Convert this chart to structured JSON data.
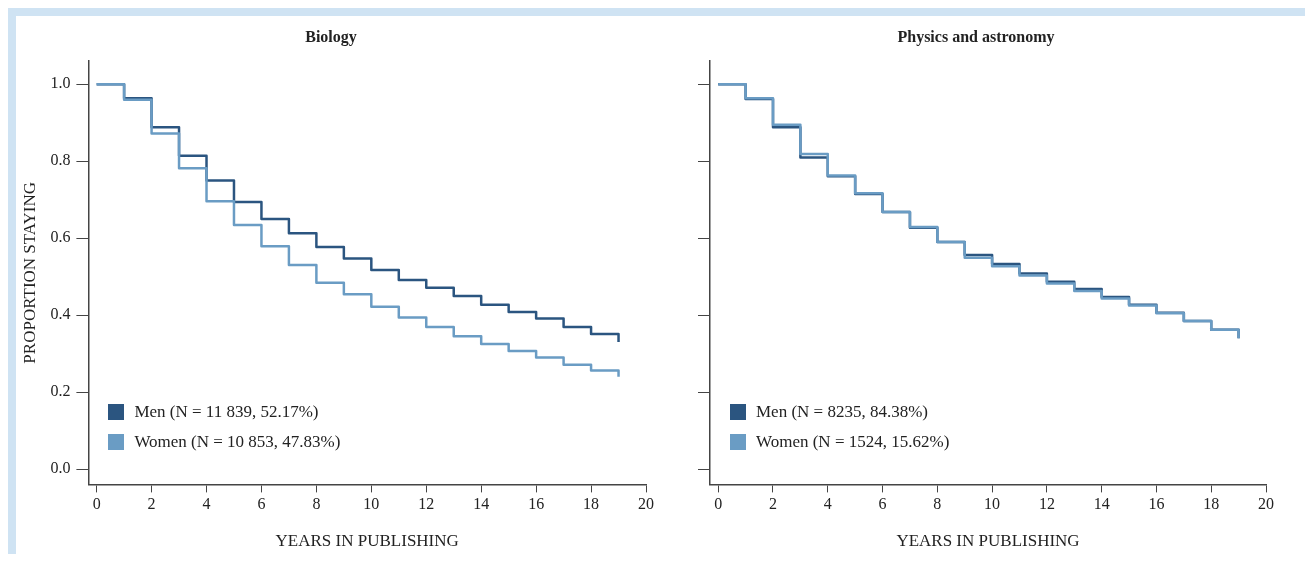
{
  "chart_data": [
    {
      "type": "step",
      "title": "Biology",
      "xlabel": "YEARS IN PUBLISHING",
      "ylabel": "PROPORTION STAYING",
      "x": [
        0,
        1,
        2,
        3,
        4,
        5,
        6,
        7,
        8,
        9,
        10,
        11,
        12,
        13,
        14,
        15,
        16,
        17,
        18,
        19
      ],
      "xlim": [
        -0.3,
        20
      ],
      "xticks": [
        0,
        2,
        4,
        6,
        8,
        10,
        12,
        14,
        16,
        18,
        20
      ],
      "ylim": [
        -0.04,
        1.06
      ],
      "yticks": [
        {
          "value": 0,
          "label": "0.0"
        },
        {
          "value": 0.2,
          "label": "0.2"
        },
        {
          "value": 0.4,
          "label": "0.4"
        },
        {
          "value": 0.6,
          "label": "0.6"
        },
        {
          "value": 0.8,
          "label": "0.8"
        },
        {
          "value": 1,
          "label": "1.0"
        }
      ],
      "grid": false,
      "marker": "none",
      "legend": "bottom left",
      "series": [
        {
          "name": "Men (N = 11 839, 52.17%)",
          "color": "#2b5580",
          "values": [
            1.0,
            0.964,
            0.888,
            0.814,
            0.75,
            0.694,
            0.65,
            0.613,
            0.577,
            0.547,
            0.517,
            0.491,
            0.471,
            0.45,
            0.427,
            0.408,
            0.391,
            0.369,
            0.351,
            0.33
          ]
        },
        {
          "name": "Women (N = 10 853, 47.83%)",
          "color": "#6a9cc4",
          "values": [
            1.0,
            0.96,
            0.872,
            0.782,
            0.696,
            0.634,
            0.579,
            0.53,
            0.484,
            0.454,
            0.422,
            0.394,
            0.369,
            0.345,
            0.325,
            0.307,
            0.29,
            0.271,
            0.256,
            0.24
          ]
        }
      ]
    },
    {
      "type": "step",
      "title": "Physics and astronomy",
      "xlabel": "YEARS IN PUBLISHING",
      "x": [
        0,
        1,
        2,
        3,
        4,
        5,
        6,
        7,
        8,
        9,
        10,
        11,
        12,
        13,
        14,
        15,
        16,
        17,
        18,
        19
      ],
      "xlim": [
        -0.3,
        20
      ],
      "xticks": [
        0,
        2,
        4,
        6,
        8,
        10,
        12,
        14,
        16,
        18,
        20
      ],
      "ylim": [
        -0.04,
        1.06
      ],
      "yticks": [
        {
          "value": 0,
          "label": null
        },
        {
          "value": 0.2,
          "label": null
        },
        {
          "value": 0.4,
          "label": null
        },
        {
          "value": 0.6,
          "label": null
        },
        {
          "value": 0.8,
          "label": null
        },
        {
          "value": 1,
          "label": null
        }
      ],
      "tick_labels": "x",
      "grid": false,
      "marker": "none",
      "legend": "bottom left",
      "series": [
        {
          "name": "Men (N = 8235, 84.38%)",
          "color": "#2b5580",
          "values": [
            1.0,
            0.962,
            0.888,
            0.81,
            0.761,
            0.715,
            0.668,
            0.627,
            0.59,
            0.556,
            0.533,
            0.508,
            0.487,
            0.468,
            0.447,
            0.427,
            0.406,
            0.385,
            0.362,
            0.34
          ]
        },
        {
          "name": "Women (N = 1524, 15.62%)",
          "color": "#6a9cc4",
          "values": [
            1.0,
            0.964,
            0.895,
            0.819,
            0.763,
            0.717,
            0.668,
            0.629,
            0.59,
            0.549,
            0.527,
            0.503,
            0.482,
            0.463,
            0.443,
            0.425,
            0.405,
            0.385,
            0.362,
            0.34
          ]
        }
      ]
    }
  ]
}
